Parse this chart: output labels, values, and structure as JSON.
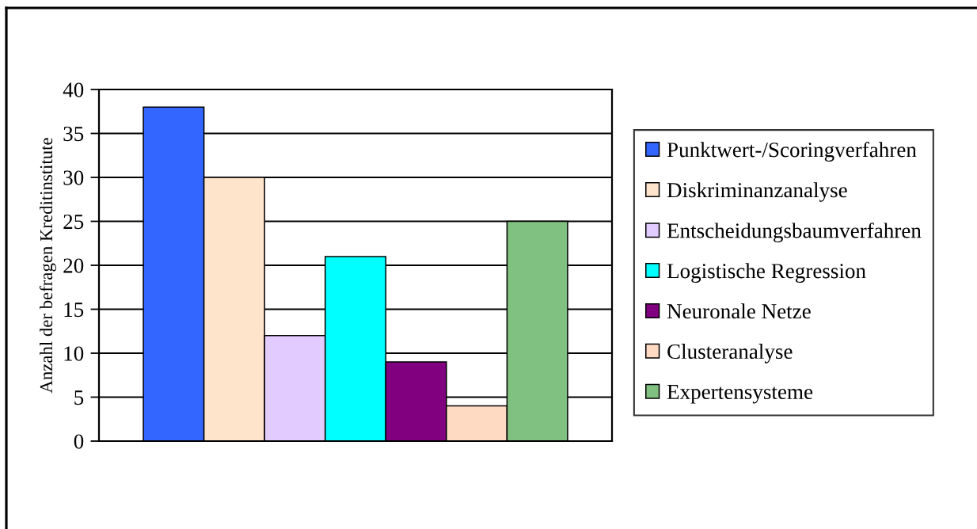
{
  "chart_data": {
    "type": "bar",
    "ylabel": "Anzahl der befragen Kreditinstitute",
    "categories": [
      null
    ],
    "series": [
      {
        "name": "Punktwert-/Scoringverfahren",
        "color": "#3366ff",
        "values": [
          38
        ]
      },
      {
        "name": "Diskriminanzanalyse",
        "color": "#ffe4cc",
        "values": [
          30
        ]
      },
      {
        "name": "Entscheidungsbaumverfahren",
        "color": "#e2ccff",
        "values": [
          12
        ]
      },
      {
        "name": "Logistische Regression",
        "color": "#00ffff",
        "values": [
          21
        ]
      },
      {
        "name": "Neuronale Netze",
        "color": "#800080",
        "values": [
          9
        ]
      },
      {
        "name": "Clusteranalyse",
        "color": "#ffdac2",
        "values": [
          4
        ]
      },
      {
        "name": "Expertensysteme",
        "color": "#80c080",
        "values": [
          25
        ]
      }
    ],
    "ylim": [
      0,
      40
    ],
    "yticks": [
      0,
      5,
      10,
      15,
      20,
      25,
      30,
      35,
      40
    ],
    "grid": "y",
    "legend": "right",
    "tick_labels": "y"
  }
}
